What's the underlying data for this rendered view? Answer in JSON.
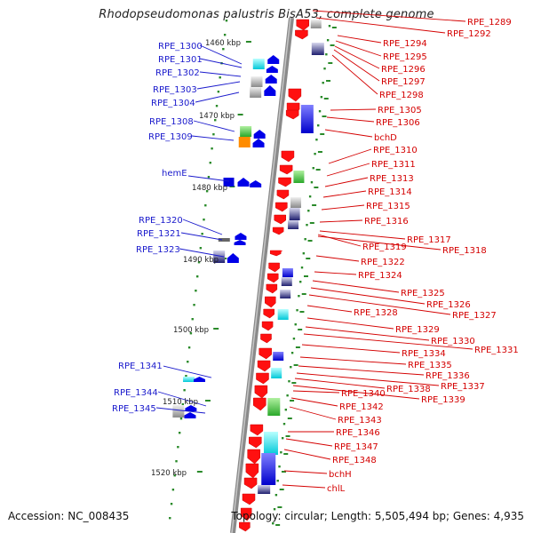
{
  "title": "Rhodopseudomonas palustris BisA53, complete genome",
  "accession": "Accession: NC_008435",
  "stats": "Topology: circular; Length: 5,505,494 bp; Genes: 4,935",
  "colors": {
    "reverse_strand_label": "#1a1acc",
    "forward_strand_label": "#d40000",
    "backbone": "#888888",
    "tick": "#2a8a2a"
  },
  "kbp_ticks": [
    "1460 kbp",
    "1470 kbp",
    "1480 kbp",
    "1490 kbp",
    "1500 kbp",
    "1510 kbp",
    "1520 kbp"
  ],
  "left_labels": [
    "RPE_1300",
    "RPE_1301",
    "RPE_1302",
    "RPE_1303",
    "RPE_1304",
    "RPE_1308",
    "RPE_1309",
    "hemE",
    "RPE_1320",
    "RPE_1321",
    "RPE_1323",
    "RPE_1341",
    "RPE_1344",
    "RPE_1345"
  ],
  "right_labels": [
    "RPE_1289",
    "RPE_1292",
    "RPE_1294",
    "RPE_1295",
    "RPE_1296",
    "RPE_1297",
    "RPE_1298",
    "RPE_1305",
    "RPE_1306",
    "bchD",
    "RPE_1310",
    "RPE_1311",
    "RPE_1313",
    "RPE_1314",
    "RPE_1315",
    "RPE_1316",
    "RPE_1317",
    "RPE_1319",
    "RPE_1318",
    "RPE_1322",
    "RPE_1324",
    "RPE_1325",
    "RPE_1326",
    "RPE_1327",
    "RPE_1328",
    "RPE_1329",
    "RPE_1330",
    "RPE_1331",
    "RPE_1334",
    "RPE_1335",
    "RPE_1336",
    "RPE_1337",
    "RPE_1338",
    "RPE_1339",
    "RPE_1340",
    "RPE_1342",
    "RPE_1343",
    "RPE_1346",
    "RPE_1347",
    "RPE_1348",
    "bchH",
    "chlL"
  ]
}
